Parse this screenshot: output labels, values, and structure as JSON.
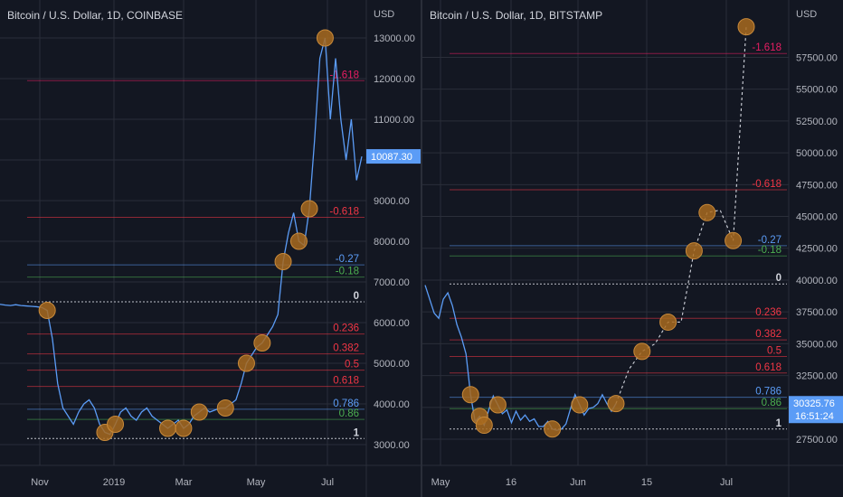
{
  "charts": [
    {
      "id": "left",
      "title": "Bitcoin / U.S. Dollar, 1D, COINBASE",
      "currency": "USD",
      "price_label": "10087.30",
      "price_label_color": "#5b9cf6",
      "y_ticks": [
        "13000.00",
        "12000.00",
        "11000.00",
        "10000.00",
        "9000.00",
        "8000.00",
        "7000.00",
        "6000.00",
        "5000.00",
        "4000.00",
        "3000.00"
      ],
      "x_ticks": [
        "Nov",
        "2019",
        "Mar",
        "May",
        "Jul"
      ]
    },
    {
      "id": "right",
      "title": "Bitcoin / U.S. Dollar, 1D, BITSTAMP",
      "currency": "USD",
      "price_label": "30325.76",
      "price_sublabel": "16:51:24",
      "price_label_color": "#5b9cf6",
      "y_ticks": [
        "57500.00",
        "55000.00",
        "52500.00",
        "50000.00",
        "47500.00",
        "45000.00",
        "42500.00",
        "40000.00",
        "37500.00",
        "35000.00",
        "32500.00",
        "30000.00",
        "27500.00"
      ],
      "x_ticks": [
        "May",
        "16",
        "Jun",
        "15",
        "Jul"
      ]
    }
  ],
  "chart_data": [
    {
      "type": "line",
      "title": "Bitcoin / U.S. Dollar, 1D, COINBASE",
      "ylabel": "USD",
      "ylim": [
        2600,
        13400
      ],
      "x_ticks": [
        "Nov",
        "2019",
        "Mar",
        "May",
        "Jul"
      ],
      "series": [
        {
          "values": [
            6450,
            6430,
            6420,
            6440,
            6420,
            6410,
            6400,
            6390,
            6370,
            6300,
            5600,
            4500,
            3900,
            3700,
            3500,
            3800,
            4000,
            4100,
            3900,
            3500,
            3300,
            3250,
            3500,
            3800,
            3900,
            3700,
            3600,
            3800,
            3900,
            3700,
            3600,
            3500,
            3400,
            3500,
            3600,
            3400,
            3500,
            3700,
            3800,
            3900,
            3800,
            3850,
            3900,
            3900,
            4000,
            4100,
            4500,
            5000,
            5200,
            5400,
            5500,
            5700,
            5900,
            6200,
            7500,
            8200,
            8700,
            8000,
            7900,
            8800,
            10500,
            12500,
            13000,
            11000,
            12500,
            11000,
            10000,
            11000,
            9500,
            10087
          ]
        }
      ],
      "fib_levels": [
        {
          "label": "-1.618",
          "price": 11950,
          "color": "#e91e63"
        },
        {
          "label": "-0.618",
          "price": 8590,
          "color": "#f23645"
        },
        {
          "label": "-0.27",
          "price": 7420,
          "color": "#5b9cf6"
        },
        {
          "label": "-0.18",
          "price": 7120,
          "color": "#4caf50"
        },
        {
          "label": "0",
          "price": 6510,
          "color": "#d1d4dc"
        },
        {
          "label": "0.236",
          "price": 5720,
          "color": "#f23645"
        },
        {
          "label": "0.382",
          "price": 5230,
          "color": "#f23645"
        },
        {
          "label": "0.5",
          "price": 4830,
          "color": "#f23645"
        },
        {
          "label": "0.618",
          "price": 4430,
          "color": "#f23645"
        },
        {
          "label": "0.786",
          "price": 3870,
          "color": "#5b9cf6"
        },
        {
          "label": "0.86",
          "price": 3620,
          "color": "#4caf50"
        },
        {
          "label": "1",
          "price": 3150,
          "color": "#d1d4dc"
        }
      ]
    },
    {
      "type": "line",
      "title": "Bitcoin / U.S. Dollar, 1D, BITSTAMP",
      "ylabel": "USD",
      "ylim": [
        25800,
        60300
      ],
      "x_ticks": [
        "May",
        "16",
        "Jun",
        "15",
        "Jul"
      ],
      "series": [
        {
          "values": [
            39600,
            38500,
            37400,
            37000,
            38500,
            39000,
            38000,
            36500,
            35500,
            34200,
            31000,
            28900,
            29300,
            28600,
            29800,
            30900,
            30200,
            29500,
            29800,
            28800,
            29700,
            29000,
            29400,
            28900,
            29100,
            28500,
            28500,
            28900,
            28300,
            28200,
            28300,
            28700,
            29900,
            31000,
            30200,
            29400,
            29900,
            30000,
            30300,
            31000,
            30300,
            29700,
            30300
          ],
          "style": "solid"
        },
        {
          "values": [
            30300,
            33000,
            34400,
            35000,
            36700,
            36700,
            42300,
            45300,
            45500,
            43100,
            59900
          ],
          "style": "dashed"
        }
      ],
      "fib_levels": [
        {
          "label": "-1.618",
          "price": 57800,
          "color": "#e91e63"
        },
        {
          "label": "-0.618",
          "price": 47100,
          "color": "#f23645"
        },
        {
          "label": "-0.27",
          "price": 42700,
          "color": "#5b9cf6"
        },
        {
          "label": "-0.18",
          "price": 41900,
          "color": "#4caf50"
        },
        {
          "label": "0",
          "price": 39700,
          "color": "#d1d4dc"
        },
        {
          "label": "0.236",
          "price": 37000,
          "color": "#f23645"
        },
        {
          "label": "0.382",
          "price": 35300,
          "color": "#f23645"
        },
        {
          "label": "0.5",
          "price": 34000,
          "color": "#f23645"
        },
        {
          "label": "0.618",
          "price": 32700,
          "color": "#f23645"
        },
        {
          "label": "0.786",
          "price": 30800,
          "color": "#5b9cf6"
        },
        {
          "label": "0.86",
          "price": 29900,
          "color": "#4caf50"
        },
        {
          "label": "1",
          "price": 28300,
          "color": "#d1d4dc"
        }
      ]
    }
  ],
  "colors": {
    "background": "#131722",
    "line": "#5b9cf6",
    "marker": "#a86a1f",
    "grid": "#2a2e39"
  }
}
